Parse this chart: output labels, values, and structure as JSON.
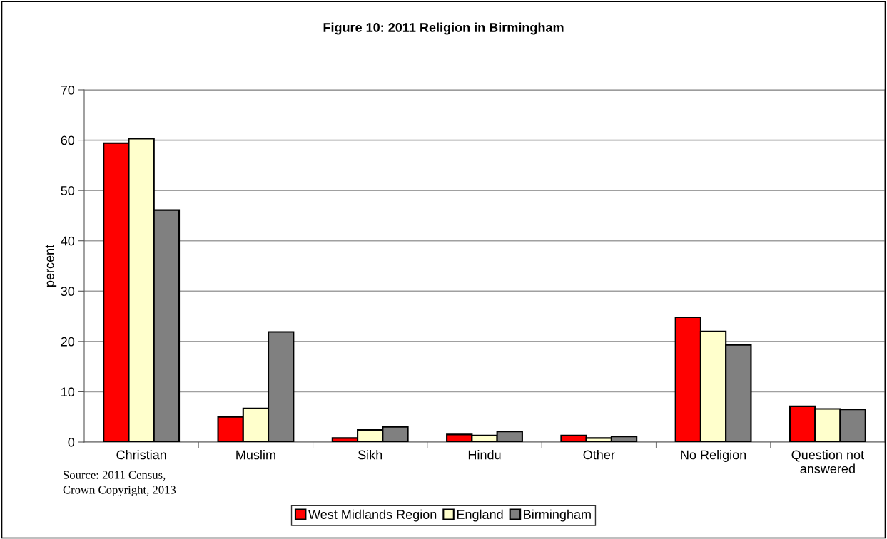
{
  "chart_data": {
    "type": "bar",
    "title": "Figure 10: 2011 Religion in Birmingham",
    "ylabel": "percent",
    "categories": [
      "Christian",
      "Muslim",
      "Sikh",
      "Hindu",
      "Other",
      "No Religion",
      "Question not\nanswered"
    ],
    "series": [
      {
        "name": "West Midlands Region",
        "color": "#ff0000",
        "values": [
          59.4,
          5.0,
          0.8,
          1.5,
          1.3,
          24.8,
          7.1
        ]
      },
      {
        "name": "England",
        "color": "#ffffcc",
        "values": [
          60.3,
          6.7,
          2.4,
          1.3,
          0.8,
          22.0,
          6.6
        ]
      },
      {
        "name": "Birmingham",
        "color": "#808080",
        "values": [
          46.1,
          21.9,
          3.0,
          2.1,
          1.1,
          19.3,
          6.5
        ]
      }
    ],
    "ylim": [
      0,
      70
    ],
    "yticks": [
      0,
      10,
      20,
      30,
      40,
      50,
      60,
      70
    ],
    "grid": "y",
    "legend": "bottom",
    "annotations": [
      "Source: 2011 Census,\nCrown Copyright, 2013"
    ]
  }
}
